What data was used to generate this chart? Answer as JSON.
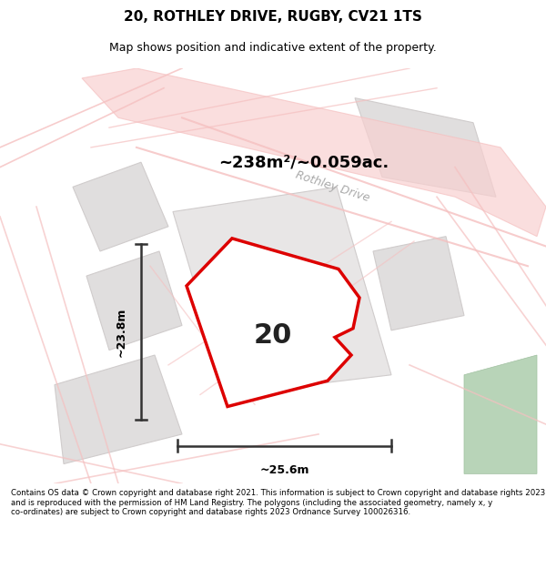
{
  "title": "20, ROTHLEY DRIVE, RUGBY, CV21 1TS",
  "subtitle": "Map shows position and indicative extent of the property.",
  "area_label": "~238m²/~0.059ac.",
  "property_number": "20",
  "width_label": "~25.6m",
  "height_label": "~23.8m",
  "footer": "Contains OS data © Crown copyright and database right 2021. This information is subject to Crown copyright and database rights 2023 and is reproduced with the permission of HM Land Registry. The polygons (including the associated geometry, namely x, y co-ordinates) are subject to Crown copyright and database rights 2023 Ordnance Survey 100026316.",
  "bg_color": "#f5f5f5",
  "map_bg": "#f0eeee",
  "plot_bg": "#e8e8e8",
  "road_color": "#f5c0c0",
  "road_label_color": "#b0b0b0",
  "red_color": "#dd0000",
  "green_bg": "#c8dcc8",
  "dark_gray": "#333333"
}
